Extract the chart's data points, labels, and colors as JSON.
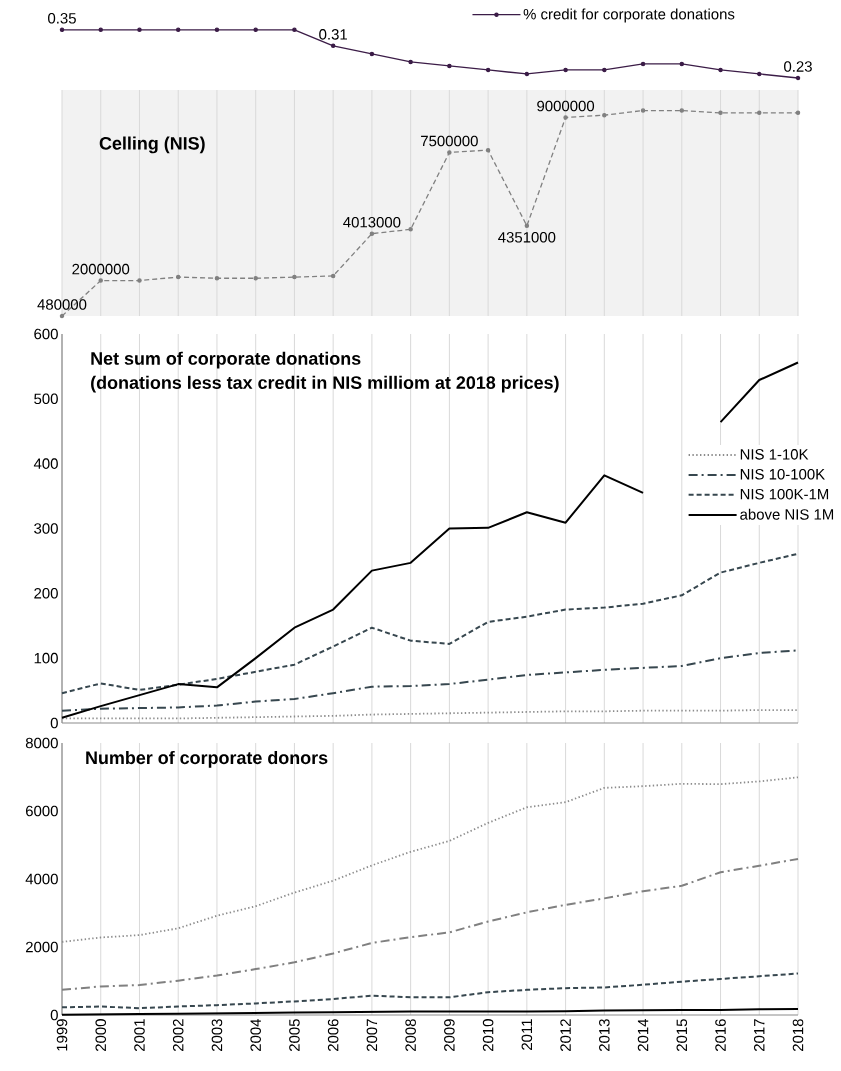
{
  "chart_data": [
    {
      "type": "line",
      "categories": [
        "1999",
        "2000",
        "2001",
        "2002",
        "2003",
        "2004",
        "2005",
        "2006",
        "2007",
        "2008",
        "2009",
        "2010",
        "2011",
        "2012",
        "2013",
        "2014",
        "2015",
        "2016",
        "2017",
        "2018"
      ],
      "tick_labels": false,
      "legend": "top right",
      "marker": "circle",
      "series": [
        {
          "name": "% credit for corporate donations",
          "color": "#3b1c47",
          "line_style": "solid",
          "values": [
            0.35,
            0.35,
            0.35,
            0.35,
            0.35,
            0.35,
            0.35,
            0.31,
            0.29,
            0.27,
            0.26,
            0.25,
            0.24,
            0.25,
            0.25,
            0.265,
            0.265,
            0.25,
            0.24,
            0.23
          ],
          "value_labels": [
            "0.35",
            null,
            null,
            null,
            null,
            null,
            null,
            "0.31",
            null,
            null,
            null,
            null,
            null,
            null,
            null,
            null,
            null,
            null,
            null,
            "0.23"
          ]
        }
      ]
    },
    {
      "type": "line",
      "title": "Celling (NIS)",
      "categories": [
        "1999",
        "2000",
        "2001",
        "2002",
        "2003",
        "2004",
        "2005",
        "2006",
        "2007",
        "2008",
        "2009",
        "2010",
        "2011",
        "2012",
        "2013",
        "2014",
        "2015",
        "2016",
        "2017",
        "2018"
      ],
      "tick_labels": false,
      "grid": "x",
      "marker": "circle",
      "series": [
        {
          "color": "#808080",
          "line_style": "dashed",
          "values": [
            480000,
            2000000,
            2000000,
            2150000,
            2100000,
            2100000,
            2150000,
            2200000,
            4013000,
            4200000,
            7500000,
            7600000,
            4351000,
            9000000,
            9100000,
            9300000,
            9300000,
            9200000,
            9200000,
            9200000
          ],
          "value_labels": [
            "480000",
            "2000000",
            null,
            null,
            null,
            null,
            null,
            null,
            "4013000",
            null,
            "7500000",
            null,
            "4351000",
            "9000000",
            null,
            null,
            null,
            null,
            null,
            null
          ]
        }
      ]
    },
    {
      "type": "line",
      "title": "Net sum of corporate donations",
      "subtitle": "(donations less tax credit in NIS milliom at 2018 prices)",
      "categories": [
        "1999",
        "2000",
        "2001",
        "2002",
        "2003",
        "2004",
        "2005",
        "2006",
        "2007",
        "2008",
        "2009",
        "2010",
        "2011",
        "2012",
        "2013",
        "2014",
        "2015",
        "2016",
        "2017",
        "2018"
      ],
      "ylim": [
        0,
        600
      ],
      "yticks": [
        0,
        100,
        200,
        300,
        400,
        500,
        600
      ],
      "tick_labels": "y",
      "grid": "x",
      "legend": "right",
      "series": [
        {
          "name": "NIS 1-10K",
          "color": "#8c8c8c",
          "line_style": "dotted",
          "values": [
            7,
            7,
            7,
            7,
            8,
            9,
            10,
            11,
            13,
            14,
            15,
            16,
            17,
            18,
            18,
            19,
            19,
            19,
            20,
            20
          ]
        },
        {
          "name": "NIS 10-100K",
          "color": "#37474f",
          "line_style": "dashdot",
          "values": [
            19,
            22,
            23,
            24,
            27,
            33,
            37,
            46,
            56,
            57,
            60,
            67,
            74,
            78,
            82,
            85,
            88,
            100,
            108,
            112
          ]
        },
        {
          "name": "NIS 100K-1M",
          "color": "#37474f",
          "line_style": "dashed",
          "values": [
            46,
            61,
            51,
            59,
            68,
            79,
            90,
            118,
            147,
            127,
            122,
            156,
            164,
            175,
            178,
            184,
            197,
            232,
            247,
            261
          ]
        },
        {
          "name": "above NIS 1M",
          "color": "#000000",
          "line_style": "solid",
          "values": [
            8,
            26,
            43,
            60,
            55,
            100,
            147,
            175,
            235,
            247,
            300,
            301,
            325,
            309,
            382,
            355,
            null,
            464,
            529,
            556
          ]
        }
      ]
    },
    {
      "type": "line",
      "title": "Number of corporate donors",
      "categories": [
        "1999",
        "2000",
        "2001",
        "2002",
        "2003",
        "2004",
        "2005",
        "2006",
        "2007",
        "2008",
        "2009",
        "2010",
        "2011",
        "2012",
        "2013",
        "2014",
        "2015",
        "2016",
        "2017",
        "2018"
      ],
      "ylim": [
        0,
        8000
      ],
      "yticks": [
        0,
        2000,
        4000,
        6000,
        8000
      ],
      "grid": "x",
      "series": [
        {
          "color": "#8c8c8c",
          "line_style": "dotted",
          "values": [
            2150,
            2280,
            2350,
            2550,
            2920,
            3200,
            3600,
            3950,
            4400,
            4800,
            5120,
            5650,
            6110,
            6260,
            6680,
            6730,
            6800,
            6790,
            6870,
            6990
          ]
        },
        {
          "color": "#808080",
          "line_style": "dashdot",
          "values": [
            740,
            840,
            880,
            1010,
            1160,
            1350,
            1550,
            1810,
            2120,
            2290,
            2430,
            2750,
            3020,
            3240,
            3430,
            3640,
            3800,
            4200,
            4390,
            4590
          ]
        },
        {
          "color": "#37474f",
          "line_style": "dashed",
          "values": [
            225,
            250,
            200,
            250,
            290,
            340,
            400,
            470,
            570,
            520,
            520,
            670,
            740,
            790,
            810,
            890,
            980,
            1060,
            1140,
            1220
          ]
        },
        {
          "color": "#000000",
          "line_style": "solid",
          "values": [
            10,
            20,
            30,
            40,
            50,
            60,
            70,
            80,
            90,
            100,
            100,
            100,
            100,
            110,
            130,
            140,
            150,
            150,
            170,
            180
          ]
        }
      ]
    }
  ]
}
